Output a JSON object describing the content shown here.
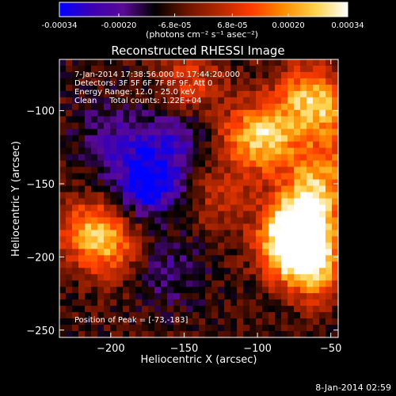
{
  "colors": {
    "background": "#000000",
    "text": "#ffffff",
    "colormap": [
      "#0000ff",
      "#3c00b4",
      "#5a0a96",
      "#000000",
      "#6e1400",
      "#b42800",
      "#ff3c00",
      "#ff8c00",
      "#ffd24b",
      "#ffffff"
    ]
  },
  "colorbar": {
    "ticks": [
      "-0.00034",
      "-0.00020",
      "-6.8e-05",
      "6.8e-05",
      "0.00020",
      "0.00034"
    ],
    "units": "(photons cm⁻² s⁻¹ asec⁻²)",
    "range": [
      -0.00034,
      0.00034
    ]
  },
  "chart_data": {
    "type": "heatmap",
    "title": "Reconstructed RHESSI Image",
    "xlabel": "Heliocentric X (arcsec)",
    "ylabel": "Heliocentric Y (arcsec)",
    "xlim": [
      -235,
      -45
    ],
    "ylim": [
      -255,
      -65
    ],
    "xticks": [
      -200,
      -150,
      -100,
      -50
    ],
    "yticks": [
      -100,
      -150,
      -200,
      -250
    ],
    "xtick_labels": [
      "−200",
      "−150",
      "−100",
      "−50"
    ],
    "ytick_labels": [
      "−100",
      "−150",
      "−200",
      "−250"
    ],
    "annotations": [
      "7-Jan-2014 17:38:56.000 to 17:44:20.000",
      "Detectors: 3F 5F 6F 7F 8F 9F, Att 0",
      "Energy Range: 12.0 - 25.0 keV",
      "Clean     Total counts: 1.22E+04"
    ],
    "peak_label": "Position of Peak = [-73,-183]",
    "peak": [
      -73,
      -183
    ],
    "features": [
      {
        "x": -73,
        "y": -183,
        "value": 0.00034
      },
      {
        "x": -75,
        "y": -195,
        "value": 0.0003
      },
      {
        "x": -65,
        "y": -165,
        "value": 0.00025
      },
      {
        "x": -55,
        "y": -140,
        "value": 0.0002
      },
      {
        "x": -60,
        "y": -210,
        "value": 0.00022
      },
      {
        "x": -212,
        "y": -182,
        "value": 0.00026
      },
      {
        "x": -200,
        "y": -195,
        "value": 0.00015
      },
      {
        "x": -105,
        "y": -118,
        "value": 0.00022
      },
      {
        "x": -90,
        "y": -120,
        "value": 0.00018
      },
      {
        "x": -70,
        "y": -90,
        "value": 0.0002
      },
      {
        "x": -52,
        "y": -98,
        "value": 0.00022
      },
      {
        "x": -145,
        "y": -80,
        "value": 0.00016
      },
      {
        "x": -125,
        "y": -160,
        "value": 0.00012
      },
      {
        "x": -175,
        "y": -150,
        "value": -0.00028
      },
      {
        "x": -160,
        "y": -120,
        "value": -0.00015
      },
      {
        "x": -200,
        "y": -120,
        "value": -0.00012
      },
      {
        "x": -160,
        "y": -210,
        "value": -0.0001
      }
    ]
  },
  "timestamp": "8-Jan-2014 02:59"
}
